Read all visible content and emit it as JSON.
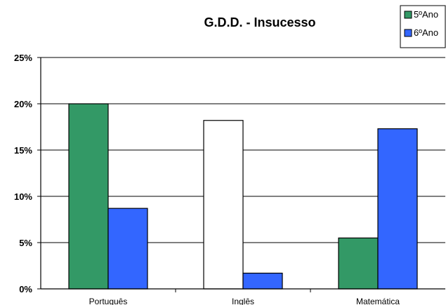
{
  "chart_data": {
    "type": "bar",
    "title": "G.D.D. - Insucesso",
    "categories": [
      "Português",
      "Inglês",
      "Matemática"
    ],
    "series": [
      {
        "name": "5ºAno",
        "values": [
          20.0,
          18.2,
          5.5
        ],
        "color": "#339966"
      },
      {
        "name": "6ºAno",
        "values": [
          8.7,
          1.7,
          17.3
        ],
        "color": "#3366ff"
      }
    ],
    "bar_overrides": [
      {
        "series": 0,
        "category": 1,
        "color": "#ffffff"
      }
    ],
    "ylim": [
      0,
      25
    ],
    "yticks": [
      0,
      5,
      10,
      15,
      20,
      25
    ],
    "ytick_labels": [
      "0%",
      "5%",
      "10%",
      "15%",
      "20%",
      "25%"
    ],
    "grid": true,
    "legend_position": "top-right"
  }
}
